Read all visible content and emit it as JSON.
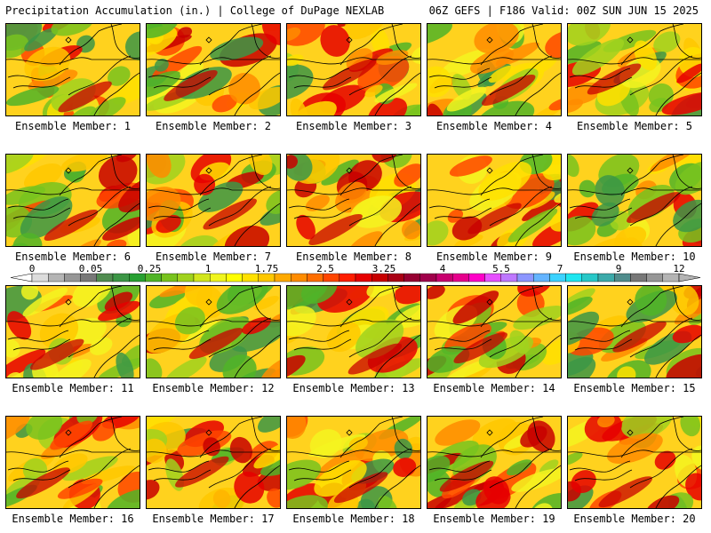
{
  "header": {
    "left": "Precipitation Accumulation (in.) | College of DuPage NEXLAB",
    "right": "06Z GEFS | F186 Valid: 00Z SUN JUN 15 2025"
  },
  "panels": [
    {
      "label": "Ensemble Member: 1"
    },
    {
      "label": "Ensemble Member: 2"
    },
    {
      "label": "Ensemble Member: 3"
    },
    {
      "label": "Ensemble Member: 4"
    },
    {
      "label": "Ensemble Member: 5"
    },
    {
      "label": "Ensemble Member: 6"
    },
    {
      "label": "Ensemble Member: 7"
    },
    {
      "label": "Ensemble Member: 8"
    },
    {
      "label": "Ensemble Member: 9"
    },
    {
      "label": "Ensemble Member: 10"
    },
    {
      "label": "Ensemble Member: 11"
    },
    {
      "label": "Ensemble Member: 12"
    },
    {
      "label": "Ensemble Member: 13"
    },
    {
      "label": "Ensemble Member: 14"
    },
    {
      "label": "Ensemble Member: 15"
    },
    {
      "label": "Ensemble Member: 16"
    },
    {
      "label": "Ensemble Member: 17"
    },
    {
      "label": "Ensemble Member: 18"
    },
    {
      "label": "Ensemble Member: 19"
    },
    {
      "label": "Ensemble Member: 20"
    }
  ],
  "colorbar": {
    "tick_labels": [
      "0",
      "0.05",
      "0.25",
      "1",
      "1.75",
      "2.5",
      "3.25",
      "4",
      "5.5",
      "7",
      "9",
      "12"
    ],
    "colors": [
      "#dcdcdc",
      "#b4b4b4",
      "#969696",
      "#787878",
      "#508c50",
      "#3c9646",
      "#28a032",
      "#50b428",
      "#78c31e",
      "#a0d21e",
      "#d2e61e",
      "#f0f51e",
      "#ffff00",
      "#ffe100",
      "#ffc800",
      "#ffaa00",
      "#ff8c00",
      "#ff6e00",
      "#ff4600",
      "#ff1e00",
      "#e60000",
      "#c80000",
      "#aa0014",
      "#960032",
      "#a0004b",
      "#c8006e",
      "#e6008c",
      "#ff00c8",
      "#e650ff",
      "#be78ff",
      "#8c96ff",
      "#64b4ff",
      "#3cd2ff",
      "#1ee6f0",
      "#28c8c8",
      "#3caaaa",
      "#508c8c",
      "#787878",
      "#969696",
      "#b4b4b4"
    ]
  }
}
